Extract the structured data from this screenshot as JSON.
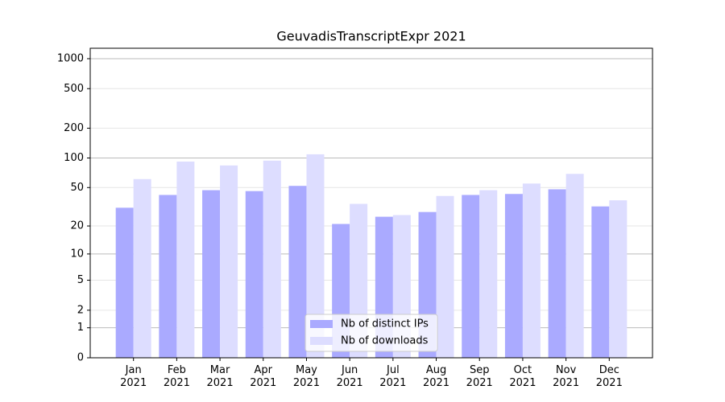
{
  "chart_data": {
    "type": "bar",
    "title": "GeuvadisTranscriptExpr 2021",
    "categories": [
      "Jan\n2021",
      "Feb\n2021",
      "Mar\n2021",
      "Apr\n2021",
      "May\n2021",
      "Jun\n2021",
      "Jul\n2021",
      "Aug\n2021",
      "Sep\n2021",
      "Oct\n2021",
      "Nov\n2021",
      "Dec\n2021"
    ],
    "series": [
      {
        "name": "Nb of distinct IPs",
        "color": "#aaaaff",
        "values": [
          31,
          42,
          47,
          46,
          52,
          21,
          25,
          28,
          42,
          43,
          48,
          32
        ]
      },
      {
        "name": "Nb of downloads",
        "color": "#ddddff",
        "values": [
          61,
          92,
          84,
          94,
          109,
          34,
          26,
          41,
          47,
          55,
          69,
          37
        ]
      }
    ],
    "yscale": "log1p",
    "ylim": [
      0,
      1273
    ],
    "yticks": [
      0,
      1,
      2,
      5,
      10,
      20,
      50,
      100,
      200,
      500,
      1000
    ],
    "grid": true,
    "legend": "lower center"
  }
}
